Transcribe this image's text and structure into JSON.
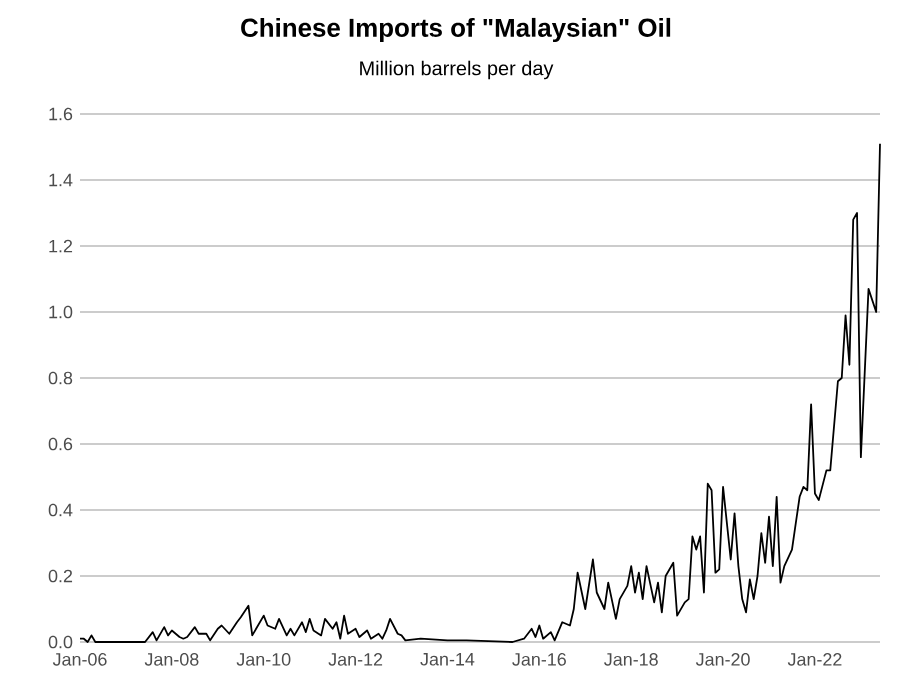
{
  "chart_data": {
    "type": "line",
    "title": "Chinese Imports of \"Malaysian\" Oil",
    "subtitle": "Million barrels per day",
    "grid": "y",
    "xlim": [
      "2006-01",
      "2023-06"
    ],
    "xticks": [
      {
        "value": "2006-01",
        "label": "Jan-06"
      },
      {
        "value": "2008-01",
        "label": "Jan-08"
      },
      {
        "value": "2010-01",
        "label": "Jan-10"
      },
      {
        "value": "2012-01",
        "label": "Jan-12"
      },
      {
        "value": "2014-01",
        "label": "Jan-14"
      },
      {
        "value": "2016-01",
        "label": "Jan-16"
      },
      {
        "value": "2018-01",
        "label": "Jan-18"
      },
      {
        "value": "2020-01",
        "label": "Jan-20"
      },
      {
        "value": "2022-01",
        "label": "Jan-22"
      }
    ],
    "ylim": [
      0,
      1.6
    ],
    "yticks": [
      {
        "value": 0,
        "label": "0.0"
      },
      0.2,
      0.4,
      0.6,
      0.8,
      {
        "value": 1,
        "label": "1.0"
      },
      1.2,
      1.4,
      1.6
    ],
    "series": [
      {
        "color": "#000000",
        "x": [
          "2006-01",
          "2006-02",
          "2006-03",
          "2006-04",
          "2006-05",
          "2007-06",
          "2007-08",
          "2007-09",
          "2007-11",
          "2007-12",
          "2008-01",
          "2008-03",
          "2008-04",
          "2008-05",
          "2008-07",
          "2008-08",
          "2008-10",
          "2008-11",
          "2009-01",
          "2009-02",
          "2009-04",
          "2009-06",
          "2009-07",
          "2009-09",
          "2009-10",
          "2010-01",
          "2010-02",
          "2010-04",
          "2010-05",
          "2010-07",
          "2010-08",
          "2010-09",
          "2010-11",
          "2010-12",
          "2011-01",
          "2011-02",
          "2011-04",
          "2011-05",
          "2011-07",
          "2011-08",
          "2011-09",
          "2011-10",
          "2011-11",
          "2012-01",
          "2012-02",
          "2012-04",
          "2012-05",
          "2012-07",
          "2012-08",
          "2012-09",
          "2012-10",
          "2012-12",
          "2013-01",
          "2013-02",
          "2013-06",
          "2013-09",
          "2014-01",
          "2014-06",
          "2015-06",
          "2015-09",
          "2015-11",
          "2015-12",
          "2016-01",
          "2016-02",
          "2016-04",
          "2016-05",
          "2016-07",
          "2016-09",
          "2016-10",
          "2016-11",
          "2017-01",
          "2017-03",
          "2017-04",
          "2017-06",
          "2017-07",
          "2017-09",
          "2017-10",
          "2017-12",
          "2018-01",
          "2018-02",
          "2018-03",
          "2018-04",
          "2018-05",
          "2018-07",
          "2018-08",
          "2018-09",
          "2018-10",
          "2018-12",
          "2019-01",
          "2019-03",
          "2019-04",
          "2019-05",
          "2019-06",
          "2019-07",
          "2019-08",
          "2019-09",
          "2019-10",
          "2019-11",
          "2019-12",
          "2020-01",
          "2020-03",
          "2020-04",
          "2020-05",
          "2020-06",
          "2020-07",
          "2020-08",
          "2020-09",
          "2020-10",
          "2020-11",
          "2020-12",
          "2021-01",
          "2021-02",
          "2021-03",
          "2021-04",
          "2021-05",
          "2021-07",
          "2021-08",
          "2021-09",
          "2021-10",
          "2021-11",
          "2021-12",
          "2022-01",
          "2022-02",
          "2022-04",
          "2022-05",
          "2022-07",
          "2022-08",
          "2022-09",
          "2022-10",
          "2022-11",
          "2022-12",
          "2023-01",
          "2023-03",
          "2023-05",
          "2023-06"
        ],
        "values": [
          0.01,
          0.01,
          0.0,
          0.02,
          0.0,
          0.0,
          0.03,
          0.005,
          0.045,
          0.02,
          0.035,
          0.015,
          0.01,
          0.015,
          0.045,
          0.025,
          0.025,
          0.005,
          0.04,
          0.05,
          0.025,
          0.06,
          0.075,
          0.11,
          0.02,
          0.08,
          0.05,
          0.04,
          0.07,
          0.02,
          0.04,
          0.02,
          0.06,
          0.03,
          0.07,
          0.035,
          0.02,
          0.07,
          0.04,
          0.06,
          0.01,
          0.08,
          0.025,
          0.04,
          0.015,
          0.035,
          0.01,
          0.025,
          0.01,
          0.035,
          0.07,
          0.025,
          0.02,
          0.005,
          0.01,
          0.008,
          0.005,
          0.005,
          0.0,
          0.01,
          0.04,
          0.015,
          0.05,
          0.01,
          0.03,
          0.005,
          0.06,
          0.05,
          0.1,
          0.21,
          0.1,
          0.25,
          0.15,
          0.1,
          0.18,
          0.07,
          0.13,
          0.17,
          0.23,
          0.15,
          0.21,
          0.13,
          0.23,
          0.12,
          0.18,
          0.09,
          0.2,
          0.24,
          0.08,
          0.12,
          0.13,
          0.32,
          0.28,
          0.32,
          0.15,
          0.48,
          0.46,
          0.21,
          0.22,
          0.47,
          0.25,
          0.39,
          0.23,
          0.13,
          0.09,
          0.19,
          0.13,
          0.2,
          0.33,
          0.24,
          0.38,
          0.23,
          0.44,
          0.18,
          0.23,
          0.28,
          0.36,
          0.44,
          0.47,
          0.46,
          0.72,
          0.45,
          0.43,
          0.52,
          0.52,
          0.79,
          0.8,
          0.99,
          0.84,
          1.28,
          1.3,
          0.56,
          1.07,
          1.0,
          1.51
        ]
      }
    ]
  }
}
